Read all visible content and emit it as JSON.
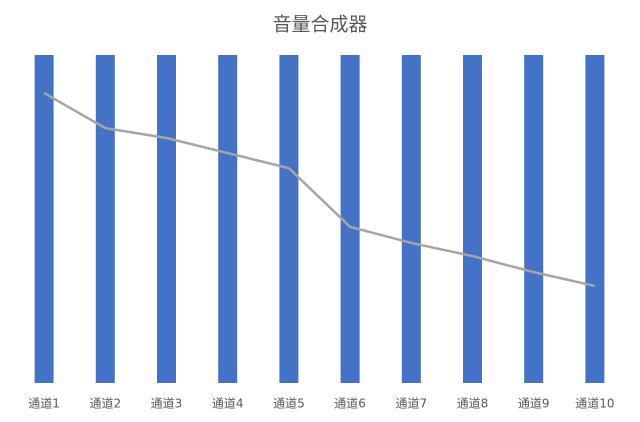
{
  "chart_data": {
    "type": "bar-line",
    "title": "音量合成器",
    "categories": [
      "通道1",
      "通道2",
      "通道3",
      "通道4",
      "通道5",
      "通道6",
      "通道7",
      "通道8",
      "通道9",
      "通道10"
    ],
    "series": [
      {
        "type": "bar",
        "color": "#4472c4",
        "values": [
          100,
          100,
          100,
          100,
          100,
          100,
          100,
          100,
          100,
          100
        ]
      },
      {
        "type": "line",
        "color": "#a5a5a5",
        "values": [
          88.4,
          77.7,
          74.7,
          70.1,
          65.5,
          47.6,
          42.7,
          38.7,
          33.8,
          29.6
        ]
      }
    ],
    "ylim": [
      0,
      100
    ]
  }
}
